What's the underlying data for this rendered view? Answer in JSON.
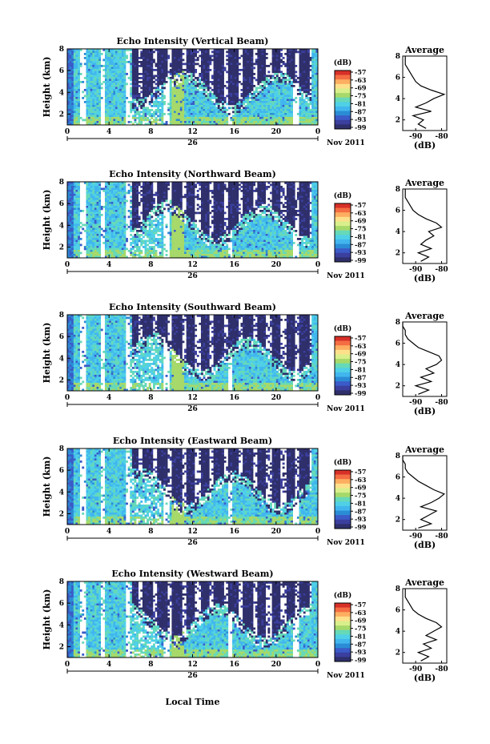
{
  "figure": {
    "local_time_label": "Local Time",
    "colorbar_unit": "(dB)",
    "colorbar_ticks": [
      "-57",
      "-63",
      "-69",
      "-75",
      "-81",
      "-87",
      "-93",
      "-99"
    ],
    "colorbar_colors": [
      "#d73027",
      "#f46d43",
      "#fdae61",
      "#fee08b",
      "#d9ef8b",
      "#a6d96a",
      "#66d9b8",
      "#4fd0e6",
      "#41b6ee",
      "#2b8cd6",
      "#3a5bc8",
      "#3b3f9e",
      "#2e2f6b"
    ]
  },
  "panels": [
    {
      "title": "Echo Intensity (Vertical Beam)",
      "ylabel": "Height (km)",
      "avg_title": "Average",
      "avg_xlabel": "(dB)",
      "avg_xticks": [
        "-90",
        "-80"
      ],
      "date_label": "Nov 2011",
      "day_label": "26"
    },
    {
      "title": "Echo Intensity (Northward Beam)",
      "ylabel": "Height (km)",
      "avg_title": "Average",
      "avg_xlabel": "(dB)",
      "avg_xticks": [
        "-90",
        "-80"
      ],
      "date_label": "Nov 2011",
      "day_label": "26"
    },
    {
      "title": "Echo Intensity (Southward Beam)",
      "ylabel": "Height (km)",
      "avg_title": "Average",
      "avg_xlabel": "(dB)",
      "avg_xticks": [
        "-90",
        "-80"
      ],
      "date_label": "Nov 2011",
      "day_label": "26"
    },
    {
      "title": "Echo Intensity (Eastward Beam)",
      "ylabel": "Height (km)",
      "avg_title": "Average",
      "avg_xlabel": "(dB)",
      "avg_xticks": [
        "-90",
        "-80"
      ],
      "date_label": "Nov 2011",
      "day_label": "26"
    },
    {
      "title": "Echo Intensity (Westward Beam)",
      "ylabel": "Height (km)",
      "avg_title": "Average",
      "avg_xlabel": "(dB)",
      "avg_xticks": [
        "-90",
        "-80"
      ],
      "date_label": "Nov 2011",
      "day_label": "26"
    }
  ],
  "chart_data": {
    "type": "heatmap",
    "x_ticks": [
      "0",
      "4",
      "8",
      "12",
      "16",
      "20",
      "0"
    ],
    "y_ticks": [
      "2",
      "4",
      "6",
      "8"
    ],
    "xlim": [
      0,
      24
    ],
    "ylim": [
      1,
      8
    ],
    "avg_xlim": [
      -95,
      -78
    ],
    "avg_profiles": [
      {
        "beam": "Vertical",
        "height": [
          1.2,
          1.6,
          2.0,
          2.4,
          2.8,
          3.2,
          3.6,
          4.0,
          4.4,
          4.8,
          5.2,
          5.6,
          6.0,
          6.4,
          6.8,
          7.2,
          7.6,
          8.0
        ],
        "db": [
          -86,
          -89,
          -87,
          -91,
          -84,
          -90,
          -86,
          -83,
          -79,
          -84,
          -88,
          -90,
          -91,
          -92,
          -93,
          -94,
          -94,
          -94
        ]
      },
      {
        "beam": "Northward",
        "height": [
          1.2,
          1.6,
          2.0,
          2.4,
          2.8,
          3.2,
          3.6,
          4.0,
          4.4,
          4.8,
          5.2,
          5.6,
          6.0,
          6.4,
          6.8,
          7.2,
          7.6,
          8.0
        ],
        "db": [
          -88,
          -85,
          -89,
          -84,
          -88,
          -86,
          -83,
          -85,
          -80,
          -82,
          -86,
          -89,
          -91,
          -92,
          -93,
          -94,
          -94,
          -94
        ]
      },
      {
        "beam": "Southward",
        "height": [
          1.2,
          1.6,
          2.0,
          2.4,
          2.8,
          3.2,
          3.6,
          4.0,
          4.4,
          4.8,
          5.2,
          5.6,
          6.0,
          6.4,
          6.8,
          7.2,
          7.6,
          8.0
        ],
        "db": [
          -89,
          -85,
          -90,
          -84,
          -88,
          -83,
          -86,
          -82,
          -80,
          -81,
          -85,
          -89,
          -91,
          -93,
          -94,
          -94,
          -95,
          -95
        ]
      },
      {
        "beam": "Eastward",
        "height": [
          1.2,
          1.6,
          2.0,
          2.4,
          2.8,
          3.2,
          3.6,
          4.0,
          4.4,
          4.8,
          5.2,
          5.6,
          6.0,
          6.4,
          6.8,
          7.2,
          7.6,
          8.0
        ],
        "db": [
          -89,
          -84,
          -88,
          -85,
          -82,
          -88,
          -84,
          -81,
          -79,
          -83,
          -86,
          -89,
          -91,
          -93,
          -94,
          -94,
          -95,
          -95
        ]
      },
      {
        "beam": "Westward",
        "height": [
          1.2,
          1.6,
          2.0,
          2.4,
          2.8,
          3.2,
          3.6,
          4.0,
          4.4,
          4.8,
          5.2,
          5.6,
          6.0,
          6.4,
          6.8,
          7.2,
          7.6,
          8.0
        ],
        "db": [
          -88,
          -85,
          -89,
          -84,
          -87,
          -82,
          -86,
          -83,
          -80,
          -82,
          -86,
          -89,
          -91,
          -92,
          -93,
          -94,
          -94,
          -94
        ]
      }
    ]
  }
}
